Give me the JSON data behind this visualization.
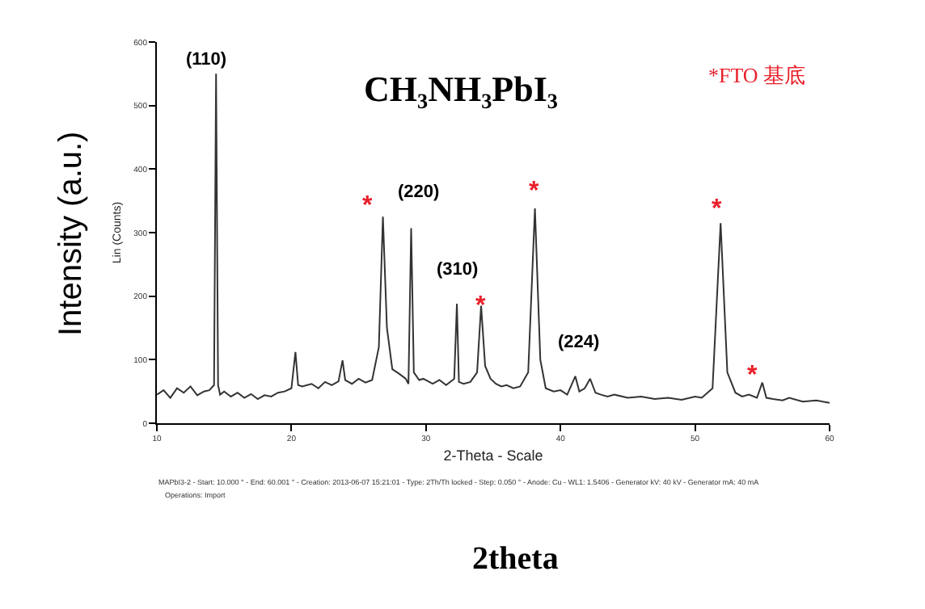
{
  "chart_data": {
    "type": "line",
    "title": "CH₃NH₃PbI₃",
    "xlabel": "2-Theta - Scale",
    "ylabel": "Lin (Counts)",
    "annotations": [
      "*FTO 基底",
      "Intensity (a.u.)",
      "2theta",
      "MAPbI3-2 - Start: 10.000 ° - End: 60.001 ° - Creation: 2013-06-07 15:21:01 - Type: 2Th/Th locked - Step: 0.050 ° - Anode: Cu - WL1: 1.5406 - Generator kV: 40 kV - Generator mA: 40 mA",
      "Operations: Import",
      "(110)",
      "(220)",
      "(310)",
      "(224)",
      "*",
      "*",
      "*",
      "*",
      "*"
    ],
    "xlim": [
      10,
      60
    ],
    "xticks": [
      10,
      20,
      30,
      40,
      50,
      60
    ],
    "ylim": [
      0,
      600
    ],
    "yticks": [
      0,
      100,
      200,
      300,
      400,
      500,
      600
    ],
    "grid": false,
    "legend": false,
    "marker": "none",
    "line_style": "solid",
    "series": [
      {
        "color": "#333333",
        "x": [
          10.0,
          10.5,
          11.0,
          11.5,
          12.0,
          12.5,
          13.0,
          13.5,
          13.9,
          14.25,
          14.4,
          14.55,
          14.7,
          15.0,
          15.5,
          16.0,
          16.5,
          17.0,
          17.5,
          18.0,
          18.5,
          19.0,
          19.5,
          20.0,
          20.3,
          20.5,
          20.8,
          21.5,
          22.0,
          22.5,
          23.0,
          23.5,
          23.8,
          24.0,
          24.5,
          25.0,
          25.5,
          26.0,
          26.5,
          26.8,
          27.1,
          27.5,
          28.0,
          28.5,
          28.7,
          28.9,
          29.1,
          29.5,
          29.8,
          30.5,
          31.0,
          31.5,
          32.1,
          32.3,
          32.45,
          32.8,
          33.3,
          33.8,
          34.1,
          34.4,
          34.8,
          35.2,
          35.6,
          36.0,
          36.5,
          37.0,
          37.6,
          38.1,
          38.5,
          38.9,
          39.5,
          40.0,
          40.5,
          41.1,
          41.4,
          41.8,
          42.2,
          42.6,
          43.0,
          43.5,
          44.0,
          45.0,
          46.0,
          47.0,
          48.0,
          49.0,
          50.0,
          50.5,
          51.3,
          51.9,
          52.4,
          53.0,
          53.5,
          54.0,
          54.6,
          55.0,
          55.3,
          55.8,
          56.5,
          57.0,
          58.0,
          59.0,
          60.0
        ],
        "values": [
          45,
          52,
          40,
          55,
          48,
          58,
          44,
          50,
          52,
          60,
          550,
          60,
          45,
          50,
          42,
          48,
          40,
          46,
          38,
          44,
          42,
          48,
          50,
          55,
          112,
          60,
          58,
          62,
          55,
          65,
          60,
          66,
          99,
          68,
          62,
          70,
          64,
          68,
          120,
          325,
          150,
          85,
          78,
          70,
          62,
          307,
          80,
          68,
          70,
          62,
          68,
          60,
          70,
          188,
          65,
          62,
          65,
          80,
          185,
          90,
          70,
          62,
          58,
          60,
          55,
          58,
          80,
          338,
          100,
          55,
          50,
          52,
          45,
          74,
          50,
          55,
          70,
          48,
          45,
          42,
          45,
          40,
          42,
          38,
          40,
          37,
          42,
          40,
          55,
          315,
          80,
          48,
          42,
          45,
          40,
          64,
          40,
          38,
          36,
          40,
          34,
          36,
          32
        ]
      }
    ]
  }
}
